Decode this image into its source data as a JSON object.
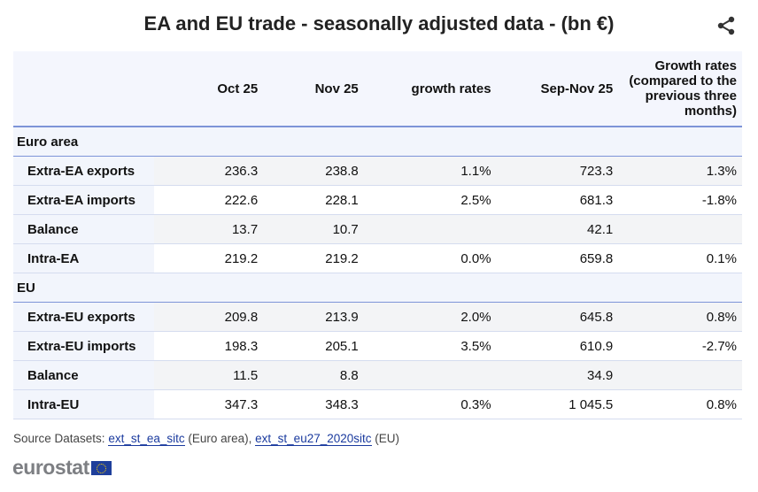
{
  "title": "EA and EU trade - seasonally adjusted data - (bn €)",
  "columns": [
    "",
    "Oct 25",
    "Nov 25",
    "growth rates",
    "Sep-Nov 25",
    "Growth rates (compared to the previous three months)"
  ],
  "groups": [
    {
      "name": "Euro area",
      "rows": [
        [
          "Extra-EA exports",
          "236.3",
          "238.8",
          "1.1%",
          "723.3",
          "1.3%"
        ],
        [
          "Extra-EA imports",
          "222.6",
          "228.1",
          "2.5%",
          "681.3",
          "-1.8%"
        ],
        [
          "Balance",
          "13.7",
          "10.7",
          "",
          "42.1",
          ""
        ],
        [
          "Intra-EA",
          "219.2",
          "219.2",
          "0.0%",
          "659.8",
          "0.1%"
        ]
      ]
    },
    {
      "name": "EU",
      "rows": [
        [
          "Extra-EU exports",
          "209.8",
          "213.9",
          "2.0%",
          "645.8",
          "0.8%"
        ],
        [
          "Extra-EU imports",
          "198.3",
          "205.1",
          "3.5%",
          "610.9",
          "-2.7%"
        ],
        [
          "Balance",
          "11.5",
          "8.8",
          "",
          "34.9",
          ""
        ],
        [
          "Intra-EU",
          "347.3",
          "348.3",
          "0.3%",
          "1 045.5",
          "0.8%"
        ]
      ]
    }
  ],
  "source": {
    "prefix": "Source Datasets: ",
    "link1": "ext_st_ea_sitc",
    "mid": " (Euro area), ",
    "link2": "ext_st_eu27_2020sitc",
    "suffix": " (EU)"
  },
  "logo": "eurostat",
  "share_icon": "share-icon"
}
